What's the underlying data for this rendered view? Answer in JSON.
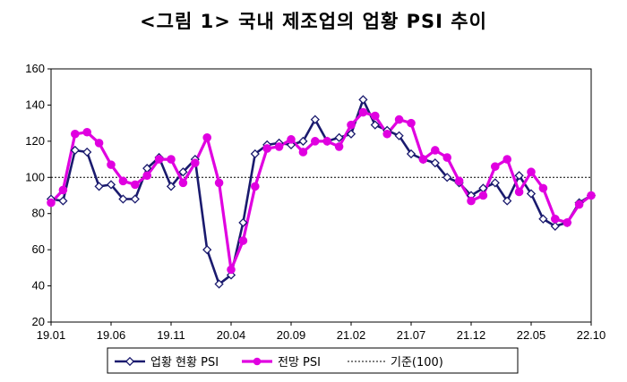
{
  "title": "<그림 1> 국내 제조업의 업황 PSI 추이",
  "chart_data": {
    "type": "line",
    "x": [
      "19.01",
      "19.02",
      "19.03",
      "19.04",
      "19.05",
      "19.06",
      "19.07",
      "19.08",
      "19.09",
      "19.10",
      "19.11",
      "19.12",
      "20.01",
      "20.02",
      "20.03",
      "20.04",
      "20.05",
      "20.06",
      "20.07",
      "20.08",
      "20.09",
      "20.10",
      "20.11",
      "20.12",
      "21.01",
      "21.02",
      "21.03",
      "21.04",
      "21.05",
      "21.06",
      "21.07",
      "21.08",
      "21.09",
      "21.10",
      "21.11",
      "21.12",
      "22.01",
      "22.02",
      "22.03",
      "22.04",
      "22.05",
      "22.06",
      "22.07",
      "22.08",
      "22.09",
      "22.10"
    ],
    "xticks": [
      "19.01",
      "19.06",
      "19.11",
      "20.04",
      "20.09",
      "21.02",
      "21.07",
      "21.12",
      "22.05",
      "22.10"
    ],
    "ylim": [
      20,
      160
    ],
    "yticks": [
      20,
      40,
      60,
      80,
      100,
      120,
      140,
      160
    ],
    "reference": {
      "name": "기준(100)",
      "value": 100,
      "color": "#000000"
    },
    "series": [
      {
        "name": "업황 현황 PSI",
        "color": "#1a1a6e",
        "marker": "diamond",
        "values": [
          88,
          87,
          115,
          114,
          95,
          96,
          88,
          88,
          105,
          111,
          95,
          103,
          110,
          60,
          41,
          46,
          75,
          113,
          118,
          119,
          118,
          120,
          132,
          120,
          122,
          124,
          143,
          129,
          126,
          123,
          113,
          110,
          108,
          100,
          97,
          90,
          94,
          97,
          87,
          101,
          91,
          77,
          73,
          75,
          86,
          90
        ]
      },
      {
        "name": "전망 PSI",
        "color": "#e000e0",
        "marker": "circle",
        "values": [
          86,
          93,
          124,
          125,
          119,
          107,
          98,
          96,
          101,
          110,
          110,
          97,
          108,
          122,
          97,
          49,
          65,
          95,
          116,
          117,
          121,
          114,
          120,
          120,
          117,
          129,
          136,
          134,
          124,
          132,
          130,
          110,
          115,
          111,
          98,
          87,
          90,
          106,
          110,
          92,
          103,
          94,
          77,
          75,
          85,
          90
        ]
      }
    ],
    "grid": false,
    "legend": "bottom"
  }
}
